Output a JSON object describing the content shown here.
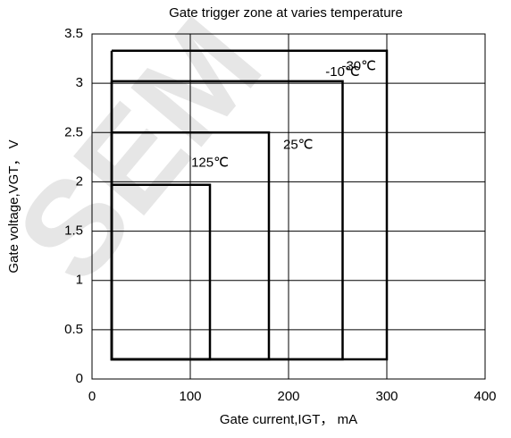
{
  "chart_data": {
    "type": "line",
    "title": "Gate trigger zone at varies temperature",
    "watermark": "SEM",
    "x_label": "Gate current,IGT， mA",
    "y_label": "Gate voltage,VGT， V",
    "xlim": [
      0,
      400
    ],
    "xticks": [
      0,
      100,
      200,
      300,
      400
    ],
    "ylim": [
      0,
      3.5
    ],
    "yticks": [
      0,
      0.5,
      1,
      1.5,
      2,
      2.5,
      3,
      3.5
    ],
    "grid": true,
    "series": [
      {
        "name": "-30℃",
        "color": "#000000",
        "x": [
          20,
          300,
          300,
          20,
          20
        ],
        "values": [
          3.33,
          3.33,
          0.2,
          0.2,
          3.33
        ]
      },
      {
        "name": "-10℃",
        "color": "#000000",
        "x": [
          20,
          255,
          255,
          20,
          20
        ],
        "values": [
          3.02,
          3.02,
          0.2,
          0.2,
          3.02
        ]
      },
      {
        "name": "25℃",
        "color": "#000000",
        "x": [
          20,
          180,
          180,
          20,
          20
        ],
        "values": [
          2.5,
          2.5,
          0.2,
          0.2,
          2.5
        ]
      },
      {
        "name": "125℃",
        "color": "#000000",
        "x": [
          20,
          120,
          120,
          20,
          20
        ],
        "values": [
          1.97,
          1.97,
          0.2,
          0.2,
          1.97
        ]
      }
    ]
  }
}
